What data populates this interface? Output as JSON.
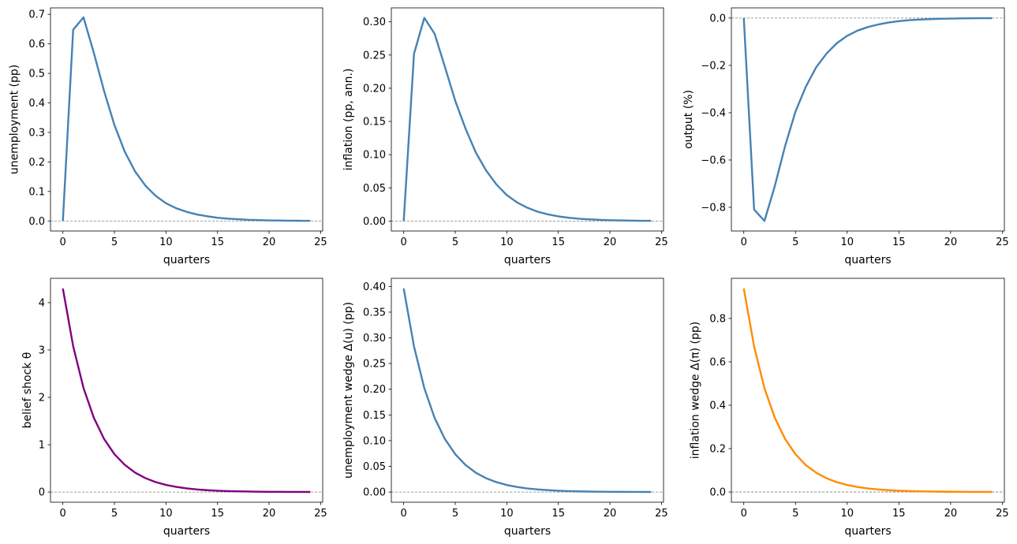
{
  "chart_data": [
    {
      "type": "line",
      "title": "",
      "xlabel": "quarters",
      "ylabel": "unemployment (pp)",
      "xlim": [
        -1.2,
        25.2
      ],
      "ylim": [
        -0.034,
        0.722
      ],
      "xticks": [
        0,
        5,
        10,
        15,
        20,
        25
      ],
      "yticks": [
        0.0,
        0.1,
        0.2,
        0.3,
        0.4,
        0.5,
        0.6,
        0.7
      ],
      "ytick_decimals": 1,
      "zero_line": true,
      "series": [
        {
          "color": "#4682b4",
          "x": [
            0,
            1,
            2,
            3,
            4,
            5,
            6,
            7,
            8,
            9,
            10,
            11,
            12,
            13,
            14,
            15,
            16,
            17,
            18,
            19,
            20,
            21,
            22,
            23,
            24
          ],
          "y": [
            0.0,
            0.648,
            0.69,
            0.57,
            0.44,
            0.325,
            0.235,
            0.168,
            0.12,
            0.085,
            0.06,
            0.043,
            0.031,
            0.022,
            0.016,
            0.011,
            0.008,
            0.006,
            0.004,
            0.003,
            0.002,
            0.0015,
            0.001,
            0.0007,
            0.0005
          ]
        }
      ]
    },
    {
      "type": "line",
      "title": "",
      "xlabel": "quarters",
      "ylabel": "inflation (pp, ann.)",
      "xlim": [
        -1.2,
        25.2
      ],
      "ylim": [
        -0.015,
        0.321
      ],
      "xticks": [
        0,
        5,
        10,
        15,
        20,
        25
      ],
      "yticks": [
        0.0,
        0.05,
        0.1,
        0.15,
        0.2,
        0.25,
        0.3
      ],
      "ytick_decimals": 2,
      "zero_line": true,
      "series": [
        {
          "color": "#4682b4",
          "x": [
            0,
            1,
            2,
            3,
            4,
            5,
            6,
            7,
            8,
            9,
            10,
            11,
            12,
            13,
            14,
            15,
            16,
            17,
            18,
            19,
            20,
            21,
            22,
            23,
            24
          ],
          "y": [
            0.0,
            0.252,
            0.306,
            0.282,
            0.232,
            0.181,
            0.139,
            0.103,
            0.076,
            0.055,
            0.039,
            0.028,
            0.02,
            0.014,
            0.01,
            0.007,
            0.005,
            0.0035,
            0.0025,
            0.0018,
            0.0012,
            0.0009,
            0.0006,
            0.0004,
            0.0003
          ]
        }
      ]
    },
    {
      "type": "line",
      "title": "",
      "xlabel": "quarters",
      "ylabel": "output (%)",
      "xlim": [
        -1.2,
        25.2
      ],
      "ylim": [
        -0.9,
        0.043
      ],
      "xticks": [
        0,
        5,
        10,
        15,
        20,
        25
      ],
      "yticks": [
        -0.8,
        -0.6,
        -0.4,
        -0.2,
        0.0
      ],
      "ytick_decimals": 1,
      "zero_line": true,
      "series": [
        {
          "color": "#4682b4",
          "x": [
            0,
            1,
            2,
            3,
            4,
            5,
            6,
            7,
            8,
            9,
            10,
            11,
            12,
            13,
            14,
            15,
            16,
            17,
            18,
            19,
            20,
            21,
            22,
            23,
            24
          ],
          "y": [
            0.0,
            -0.81,
            -0.857,
            -0.71,
            -0.54,
            -0.395,
            -0.29,
            -0.208,
            -0.15,
            -0.106,
            -0.075,
            -0.053,
            -0.038,
            -0.027,
            -0.019,
            -0.013,
            -0.009,
            -0.0065,
            -0.0045,
            -0.0032,
            -0.0022,
            -0.0015,
            -0.001,
            -0.0007,
            -0.0005
          ]
        }
      ]
    },
    {
      "type": "line",
      "title": "",
      "xlabel": "quarters",
      "ylabel": "belief shock θ",
      "xlim": [
        -1.2,
        25.2
      ],
      "ylim": [
        -0.215,
        4.515
      ],
      "xticks": [
        0,
        5,
        10,
        15,
        20,
        25
      ],
      "yticks": [
        0,
        1,
        2,
        3,
        4
      ],
      "ytick_decimals": 0,
      "zero_line": true,
      "series": [
        {
          "color": "#800080",
          "x": [
            0,
            1,
            2,
            3,
            4,
            5,
            6,
            7,
            8,
            9,
            10,
            11,
            12,
            13,
            14,
            15,
            16,
            17,
            18,
            19,
            20,
            21,
            22,
            23,
            24
          ],
          "y": [
            4.3,
            3.08,
            2.2,
            1.57,
            1.12,
            0.8,
            0.575,
            0.41,
            0.294,
            0.21,
            0.15,
            0.108,
            0.077,
            0.055,
            0.039,
            0.028,
            0.02,
            0.0144,
            0.0103,
            0.0073,
            0.0053,
            0.0038,
            0.0027,
            0.0019,
            0.0014
          ]
        }
      ]
    },
    {
      "type": "line",
      "title": "",
      "xlabel": "quarters",
      "ylabel": "unemployment wedge Δ(u) (pp)",
      "xlim": [
        -1.2,
        25.2
      ],
      "ylim": [
        -0.0198,
        0.4158
      ],
      "xticks": [
        0,
        5,
        10,
        15,
        20,
        25
      ],
      "yticks": [
        0.0,
        0.05,
        0.1,
        0.15,
        0.2,
        0.25,
        0.3,
        0.35,
        0.4
      ],
      "ytick_decimals": 2,
      "zero_line": true,
      "series": [
        {
          "color": "#4682b4",
          "x": [
            0,
            1,
            2,
            3,
            4,
            5,
            6,
            7,
            8,
            9,
            10,
            11,
            12,
            13,
            14,
            15,
            16,
            17,
            18,
            19,
            20,
            21,
            22,
            23,
            24
          ],
          "y": [
            0.396,
            0.283,
            0.202,
            0.144,
            0.103,
            0.0736,
            0.0526,
            0.0375,
            0.0268,
            0.0192,
            0.0137,
            0.0098,
            0.007,
            0.005,
            0.0036,
            0.0025,
            0.0018,
            0.0013,
            0.0009,
            0.00066,
            0.00047,
            0.00034,
            0.00024,
            0.00017,
            0.00012
          ]
        }
      ]
    },
    {
      "type": "line",
      "title": "",
      "xlabel": "quarters",
      "ylabel": "inflation wedge Δ(π) (pp)",
      "xlim": [
        -1.2,
        25.2
      ],
      "ylim": [
        -0.047,
        0.985
      ],
      "xticks": [
        0,
        5,
        10,
        15,
        20,
        25
      ],
      "yticks": [
        0.0,
        0.2,
        0.4,
        0.6,
        0.8
      ],
      "ytick_decimals": 1,
      "zero_line": true,
      "series": [
        {
          "color": "#ff8c00",
          "x": [
            0,
            1,
            2,
            3,
            4,
            5,
            6,
            7,
            8,
            9,
            10,
            11,
            12,
            13,
            14,
            15,
            16,
            17,
            18,
            19,
            20,
            21,
            22,
            23,
            24
          ],
          "y": [
            0.938,
            0.67,
            0.478,
            0.342,
            0.244,
            0.174,
            0.124,
            0.089,
            0.0635,
            0.0454,
            0.0324,
            0.0231,
            0.0165,
            0.0118,
            0.0084,
            0.006,
            0.0043,
            0.0031,
            0.0022,
            0.0016,
            0.0011,
            0.0008,
            0.00057,
            0.0004,
            0.00029
          ]
        }
      ]
    }
  ]
}
